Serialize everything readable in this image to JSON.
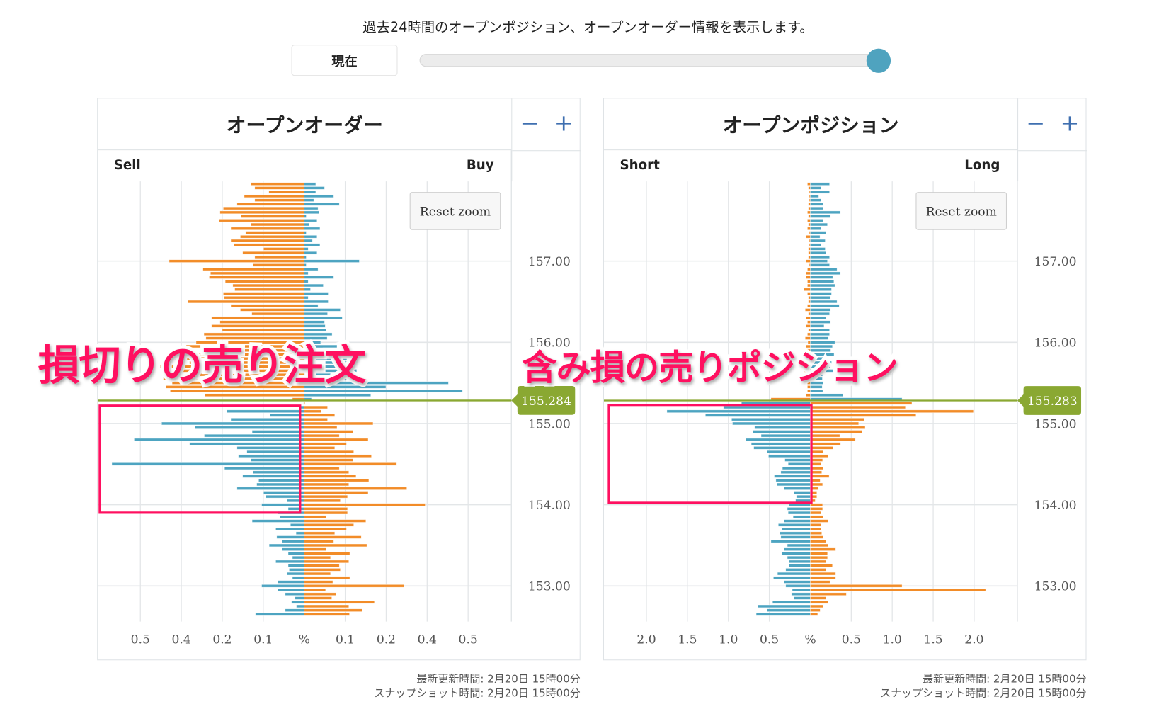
{
  "header": {
    "caption": "過去24時間のオープンポジション、オープンオーダー情報を表示します。",
    "now_button": "現在",
    "time_slider_value_percent": 100,
    "slider_thumb_color": "#4fa3bf"
  },
  "colors": {
    "orange": "#f28c28",
    "blue": "#4da4c1",
    "current_price": "#8aa832",
    "zoom_controls": "#3f6fb0",
    "annotation": "#ff1060"
  },
  "panels": [
    {
      "title": "オープンオーダー",
      "zoom_out": "−",
      "zoom_in": "+",
      "left_label": "Sell",
      "right_label": "Buy",
      "reset_zoom": "Reset zoom",
      "updated": "最新更新時間: 2月20日 15時00分",
      "snapshot": "スナップショット時間: 2月20日 15時00分"
    },
    {
      "title": "オープンポジション",
      "zoom_out": "−",
      "zoom_in": "+",
      "left_label": "Short",
      "right_label": "Long",
      "reset_zoom": "Reset zoom",
      "updated": "最新更新時間: 2月20日 15時00分",
      "snapshot": "スナップショット時間: 2月20日 15時00分"
    }
  ],
  "annotations": {
    "left_text": "損切りの売り注文",
    "right_text": "含み損の売りポジション"
  },
  "chart_data": [
    {
      "type": "bar",
      "orientation": "horizontal-butterfly",
      "title": "オープンオーダー",
      "left_series": "Sell",
      "right_series": "Buy",
      "x_unit": "%",
      "x_tick_labels": [
        "0.5",
        "0.4",
        "0.2",
        "0.1",
        "%",
        "0.1",
        "0.2",
        "0.4",
        "0.5"
      ],
      "x_tick_values": [
        0.5,
        0.375,
        0.25,
        0.125,
        0,
        0.125,
        0.25,
        0.375,
        0.5
      ],
      "y_tick_labels": [
        "157.00",
        "156.00",
        "155.00",
        "154.00",
        "153.00"
      ],
      "y_tick_values": [
        157,
        156,
        155,
        154,
        153
      ],
      "current_price": "155.284",
      "grid": true,
      "prices": [
        157.95,
        157.9,
        157.85,
        157.8,
        157.75,
        157.7,
        157.65,
        157.6,
        157.55,
        157.5,
        157.45,
        157.4,
        157.35,
        157.3,
        157.25,
        157.2,
        157.15,
        157.1,
        157.05,
        157.0,
        156.95,
        156.9,
        156.85,
        156.8,
        156.75,
        156.7,
        156.65,
        156.6,
        156.55,
        156.5,
        156.45,
        156.4,
        156.35,
        156.3,
        156.25,
        156.2,
        156.15,
        156.1,
        156.05,
        156.0,
        155.95,
        155.9,
        155.85,
        155.8,
        155.75,
        155.7,
        155.65,
        155.6,
        155.55,
        155.5,
        155.45,
        155.4,
        155.35,
        155.3,
        155.25,
        155.2,
        155.15,
        155.1,
        155.05,
        155.0,
        154.95,
        154.9,
        154.85,
        154.8,
        154.75,
        154.7,
        154.65,
        154.6,
        154.55,
        154.5,
        154.45,
        154.4,
        154.35,
        154.3,
        154.25,
        154.2,
        154.15,
        154.1,
        154.05,
        154.0,
        153.95,
        153.9,
        153.85,
        153.8,
        153.75,
        153.7,
        153.65,
        153.6,
        153.55,
        153.5,
        153.45,
        153.4,
        153.35,
        153.3,
        153.25,
        153.2,
        153.15,
        153.1,
        153.05,
        153.0,
        152.95,
        152.9,
        152.85,
        152.8,
        152.75,
        152.7,
        152.65
      ],
      "left_values": [
        0.162,
        0.151,
        0.108,
        0.183,
        0.151,
        0.205,
        0.247,
        0.257,
        0.193,
        0.26,
        0.162,
        0.224,
        0.179,
        0.195,
        0.224,
        0.215,
        0.124,
        0.188,
        0.151,
        0.412,
        0.156,
        0.309,
        0.286,
        0.29,
        0.241,
        0.218,
        0.212,
        0.247,
        0.244,
        0.355,
        0.224,
        0.195,
        0.16,
        0.283,
        0.257,
        0.283,
        0.25,
        0.306,
        0.3,
        0.33,
        0.36,
        0.31,
        0.38,
        0.42,
        0.35,
        0.44,
        0.4,
        0.38,
        0.43,
        0.403,
        0.422,
        0.409,
        0.303,
        0.036,
        0.002,
        0.014,
        0.237,
        0.104,
        0.224,
        0.435,
        0.334,
        0.159,
        0.305,
        0.519,
        0.35,
        0.205,
        0.175,
        0.201,
        0.162,
        0.587,
        0.243,
        0.156,
        0.188,
        0.139,
        0.145,
        0.205,
        0.124,
        0.117,
        0.052,
        0.13,
        0.049,
        0.08,
        0.075,
        0.159,
        0.042,
        0.087,
        0.025,
        0.084,
        0.068,
        0.107,
        0.068,
        0.049,
        0.036,
        0.087,
        0.049,
        0.046,
        0.052,
        0.036,
        0.081,
        0.13,
        0.08,
        0.058,
        0.028,
        0.039,
        0.024,
        0.058,
        0.149
      ],
      "right_values": [
        0.035,
        0.062,
        0.035,
        0.09,
        0.029,
        0.107,
        0.042,
        0.045,
        0.006,
        0.039,
        0.015,
        0.048,
        0.006,
        0.039,
        0.025,
        0.048,
        0.012,
        0.039,
        0.006,
        0.168,
        0.006,
        0.042,
        0.012,
        0.09,
        0.012,
        0.058,
        0.019,
        0.073,
        0.012,
        0.073,
        0.042,
        0.11,
        0.071,
        0.116,
        0.062,
        0.064,
        0.067,
        0.085,
        0.07,
        0.05,
        0.1,
        0.12,
        0.09,
        0.13,
        0.15,
        0.11,
        0.16,
        0.08,
        0.18,
        0.44,
        0.249,
        0.483,
        0.203,
        0.022,
        0.002,
        0.071,
        0.052,
        0.093,
        0.071,
        0.21,
        0.1,
        0.149,
        0.107,
        0.195,
        0.129,
        0.093,
        0.151,
        0.205,
        0.149,
        0.282,
        0.107,
        0.136,
        0.158,
        0.197,
        0.136,
        0.313,
        0.195,
        0.132,
        0.11,
        0.369,
        0.132,
        0.132,
        0.067,
        0.188,
        0.151,
        0.129,
        0.093,
        0.174,
        0.09,
        0.191,
        0.067,
        0.139,
        0.08,
        0.136,
        0.107,
        0.11,
        0.08,
        0.139,
        0.087,
        0.304,
        0.065,
        0.097,
        0.084,
        0.214,
        0.136,
        0.177,
        0.138
      ]
    },
    {
      "type": "bar",
      "orientation": "horizontal-butterfly",
      "title": "オープンポジション",
      "left_series": "Short",
      "right_series": "Long",
      "x_unit": "%",
      "x_tick_labels": [
        "2.0",
        "1.5",
        "1.0",
        "0.5",
        "%",
        "0.5",
        "1.0",
        "1.5",
        "2.0"
      ],
      "x_tick_values": [
        2.0,
        1.5,
        1.0,
        0.5,
        0,
        0.5,
        1.0,
        1.5,
        2.0
      ],
      "y_tick_labels": [
        "157.00",
        "156.00",
        "155.00",
        "154.00",
        "153.00"
      ],
      "y_tick_values": [
        157,
        156,
        155,
        154,
        153
      ],
      "current_price": "155.283",
      "grid": true,
      "prices": [
        157.95,
        157.9,
        157.85,
        157.8,
        157.75,
        157.7,
        157.65,
        157.6,
        157.55,
        157.5,
        157.45,
        157.4,
        157.35,
        157.3,
        157.25,
        157.2,
        157.15,
        157.1,
        157.05,
        157.0,
        156.95,
        156.9,
        156.85,
        156.8,
        156.75,
        156.7,
        156.65,
        156.6,
        156.55,
        156.5,
        156.45,
        156.4,
        156.35,
        156.3,
        156.25,
        156.2,
        156.15,
        156.1,
        156.05,
        156.0,
        155.95,
        155.9,
        155.85,
        155.8,
        155.75,
        155.7,
        155.65,
        155.6,
        155.55,
        155.5,
        155.45,
        155.4,
        155.35,
        155.3,
        155.25,
        155.2,
        155.15,
        155.1,
        155.05,
        155.0,
        154.95,
        154.9,
        154.85,
        154.8,
        154.75,
        154.7,
        154.65,
        154.6,
        154.55,
        154.5,
        154.45,
        154.4,
        154.35,
        154.3,
        154.25,
        154.2,
        154.15,
        154.1,
        154.05,
        154.0,
        153.95,
        153.9,
        153.85,
        153.8,
        153.75,
        153.7,
        153.65,
        153.6,
        153.55,
        153.5,
        153.45,
        153.4,
        153.35,
        153.3,
        153.25,
        153.2,
        153.15,
        153.1,
        153.05,
        153.0,
        152.95,
        152.9,
        152.85,
        152.8,
        152.75,
        152.7,
        152.65
      ],
      "left_values": [
        0.035,
        0.024,
        0.012,
        0.012,
        0.012,
        0.024,
        0.024,
        0.035,
        0.024,
        0.035,
        0.024,
        0.035,
        0.012,
        0.05,
        0.012,
        0.012,
        0.024,
        0.024,
        0.024,
        0.05,
        0.012,
        0.035,
        0.05,
        0.05,
        0.035,
        0.035,
        0.076,
        0.035,
        0.024,
        0.024,
        0.035,
        0.062,
        0.024,
        0.05,
        0.035,
        0.05,
        0.024,
        0.035,
        0.062,
        0.03,
        0.05,
        0.04,
        0.06,
        0.03,
        0.05,
        0.04,
        0.07,
        0.05,
        0.035,
        0.035,
        0.035,
        0.035,
        0.052,
        0.48,
        0.84,
        1.06,
        1.75,
        1.28,
        0.96,
        0.95,
        0.68,
        0.7,
        0.6,
        0.79,
        0.72,
        0.69,
        0.53,
        0.51,
        0.31,
        0.27,
        0.34,
        0.36,
        0.44,
        0.42,
        0.41,
        0.32,
        0.2,
        0.17,
        0.18,
        0.26,
        0.28,
        0.27,
        0.21,
        0.32,
        0.39,
        0.35,
        0.37,
        0.36,
        0.48,
        0.28,
        0.32,
        0.35,
        0.28,
        0.26,
        0.26,
        0.3,
        0.4,
        0.45,
        0.32,
        0.3,
        0.22,
        0.23,
        0.2,
        0.46,
        0.64,
        0.53,
        0.66
      ],
      "right_values": [
        0.235,
        0.129,
        0.235,
        0.103,
        0.129,
        0.156,
        0.156,
        0.368,
        0.247,
        0.156,
        0.209,
        0.129,
        0.194,
        0.118,
        0.182,
        0.129,
        0.182,
        0.194,
        0.235,
        0.209,
        0.235,
        0.326,
        0.368,
        0.274,
        0.288,
        0.3,
        0.259,
        0.259,
        0.247,
        0.326,
        0.353,
        0.247,
        0.235,
        0.194,
        0.247,
        0.168,
        0.235,
        0.235,
        0.221,
        0.3,
        0.27,
        0.25,
        0.29,
        0.22,
        0.26,
        0.24,
        0.28,
        0.15,
        0.147,
        0.156,
        0.145,
        0.153,
        0.4,
        1.12,
        1.24,
        1.16,
        1.99,
        1.29,
        0.66,
        0.59,
        0.67,
        0.63,
        0.36,
        0.55,
        0.37,
        0.28,
        0.16,
        0.22,
        0.15,
        0.13,
        0.16,
        0.14,
        0.23,
        0.12,
        0.15,
        0.1,
        0.08,
        0.08,
        0.06,
        0.15,
        0.15,
        0.13,
        0.16,
        0.22,
        0.13,
        0.13,
        0.14,
        0.16,
        0.19,
        0.22,
        0.31,
        0.21,
        0.21,
        0.19,
        0.27,
        0.19,
        0.31,
        0.31,
        0.24,
        1.12,
        2.14,
        0.44,
        0.19,
        0.22,
        0.16,
        0.12,
        0.09
      ]
    }
  ]
}
